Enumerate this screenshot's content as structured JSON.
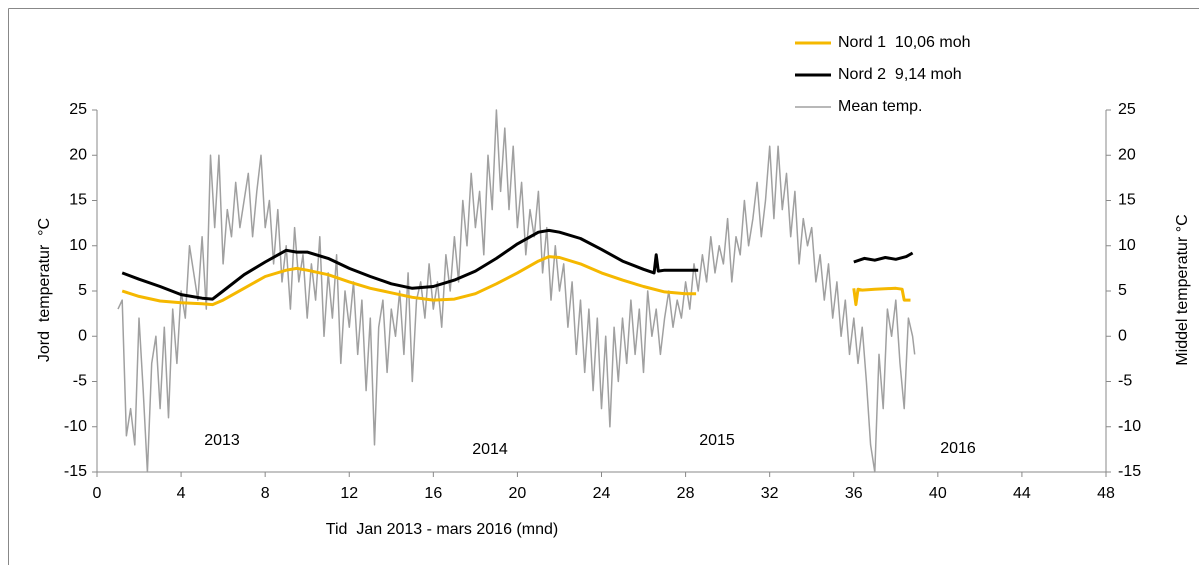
{
  "chart_data": {
    "type": "line",
    "x_label": "Tid  Jan 2013 - mars 2016 (mnd)",
    "y_label": "Jord  temperatur  °C",
    "y2_label": "Middel temperatur °C",
    "xlim": [
      0,
      48
    ],
    "xticks": [
      0,
      4,
      8,
      12,
      16,
      20,
      24,
      28,
      32,
      36,
      40,
      44,
      48
    ],
    "ylim": [
      -15,
      25
    ],
    "yticks": [
      -15,
      -10,
      -5,
      0,
      5,
      10,
      15,
      20,
      25
    ],
    "y2lim": [
      -15,
      25
    ],
    "y2ticks": [
      -15,
      -10,
      -5,
      0,
      5,
      10,
      15,
      20,
      25
    ],
    "annotations": [
      "2013",
      "2014",
      "2015",
      "2016"
    ],
    "series": [
      {
        "name": "Nord 1  10,06 moh",
        "color": "#f5b800",
        "x": [
          1.2,
          2,
          3,
          4,
          5,
          5.5,
          6,
          7,
          8,
          9,
          9.5,
          10,
          11,
          12,
          13,
          14,
          15,
          16,
          17,
          18,
          19,
          20,
          21,
          21.5,
          22,
          23,
          24,
          25,
          26,
          27,
          28,
          28.5,
          32,
          36,
          36.1,
          36.2,
          36.4,
          37,
          38,
          38.3,
          38.4,
          38.7
        ],
        "values": [
          5,
          4.4,
          3.9,
          3.7,
          3.6,
          3.5,
          4,
          5.3,
          6.6,
          7.3,
          7.5,
          7.3,
          6.8,
          6,
          5.3,
          4.8,
          4.3,
          4,
          4.1,
          4.7,
          5.8,
          7,
          8.3,
          8.8,
          8.7,
          8,
          7,
          6.2,
          5.5,
          4.9,
          4.7,
          4.7,
          null,
          5.3,
          3.5,
          5.2,
          5.1,
          5.2,
          5.3,
          5.2,
          4,
          4
        ]
      },
      {
        "name": "Nord 2  9,14 moh",
        "color": "#000000",
        "x": [
          1.2,
          2,
          3,
          4,
          5,
          5.5,
          6,
          7,
          8,
          9,
          9.5,
          10,
          11,
          12,
          13,
          14,
          15,
          16,
          17,
          18,
          19,
          20,
          21,
          21.5,
          22,
          23,
          24,
          25,
          26,
          26.5,
          26.6,
          26.7,
          27,
          28,
          28.6,
          32,
          36,
          36.5,
          37,
          37.5,
          38,
          38.5,
          38.8
        ],
        "values": [
          7,
          6.3,
          5.5,
          4.6,
          4.2,
          4.1,
          5,
          6.8,
          8.2,
          9.5,
          9.3,
          9.3,
          8.6,
          7.5,
          6.6,
          5.8,
          5.3,
          5.5,
          6.2,
          7.2,
          8.6,
          10.2,
          11.5,
          11.7,
          11.5,
          10.8,
          9.6,
          8.3,
          7.4,
          7,
          9,
          7.2,
          7.3,
          7.3,
          7.3,
          null,
          8.2,
          8.6,
          8.4,
          8.7,
          8.5,
          8.8,
          9.2
        ]
      },
      {
        "name": "Mean temp.",
        "color": "#a0a0a0",
        "axis": "y2",
        "x": [
          1,
          1.2,
          1.4,
          1.6,
          1.8,
          2,
          2.2,
          2.4,
          2.6,
          2.8,
          3,
          3.2,
          3.4,
          3.6,
          3.8,
          4,
          4.2,
          4.4,
          4.6,
          4.8,
          5,
          5.2,
          5.4,
          5.6,
          5.8,
          6,
          6.2,
          6.4,
          6.6,
          6.8,
          7,
          7.2,
          7.4,
          7.6,
          7.8,
          8,
          8.2,
          8.4,
          8.6,
          8.8,
          9,
          9.2,
          9.4,
          9.6,
          9.8,
          10,
          10.2,
          10.4,
          10.6,
          10.8,
          11,
          11.2,
          11.4,
          11.6,
          11.8,
          12,
          12.2,
          12.4,
          12.6,
          12.8,
          13,
          13.2,
          13.4,
          13.6,
          13.8,
          14,
          14.2,
          14.4,
          14.6,
          14.8,
          15,
          15.2,
          15.4,
          15.6,
          15.8,
          16,
          16.2,
          16.4,
          16.6,
          16.8,
          17,
          17.2,
          17.4,
          17.6,
          17.8,
          18,
          18.2,
          18.4,
          18.6,
          18.8,
          19,
          19.2,
          19.4,
          19.6,
          19.8,
          20,
          20.2,
          20.4,
          20.6,
          20.8,
          21,
          21.2,
          21.4,
          21.6,
          21.8,
          22,
          22.2,
          22.4,
          22.6,
          22.8,
          23,
          23.2,
          23.4,
          23.6,
          23.8,
          24,
          24.2,
          24.4,
          24.6,
          24.8,
          25,
          25.2,
          25.4,
          25.6,
          25.8,
          26,
          26.2,
          26.4,
          26.6,
          26.8,
          27,
          27.2,
          27.4,
          27.6,
          27.8,
          28,
          28.2,
          28.4,
          28.6,
          28.8,
          29,
          29.2,
          29.4,
          29.6,
          29.8,
          30,
          30.2,
          30.4,
          30.6,
          30.8,
          31,
          31.2,
          31.4,
          31.6,
          31.8,
          32,
          32.2,
          32.4,
          32.6,
          32.8,
          33,
          33.2,
          33.4,
          33.6,
          33.8,
          34,
          34.2,
          34.4,
          34.6,
          34.8,
          35,
          35.2,
          35.4,
          35.6,
          35.8,
          36,
          36.2,
          36.4,
          36.6,
          36.8,
          37,
          37.2,
          37.4,
          37.6,
          37.8,
          38,
          38.2,
          38.4,
          38.6,
          38.8,
          38.9
        ],
        "values": [
          3,
          4,
          -11,
          -8,
          -12,
          2,
          -6,
          -15,
          -3,
          0,
          -8,
          1,
          -9,
          3,
          -3,
          5,
          2,
          10,
          7,
          4,
          11,
          3,
          20,
          12,
          20,
          8,
          14,
          11,
          17,
          12,
          15,
          18,
          11,
          16,
          20,
          12,
          15,
          8,
          14,
          6,
          10,
          3,
          12,
          6,
          9,
          2,
          8,
          4,
          11,
          0,
          7,
          2,
          9,
          -3,
          5,
          1,
          6,
          -2,
          4,
          -6,
          2,
          -12,
          1,
          4,
          -4,
          3,
          0,
          5,
          -2,
          7,
          -5,
          4,
          6,
          2,
          8,
          3,
          6,
          1,
          9,
          5,
          11,
          6,
          15,
          10,
          18,
          12,
          16,
          9,
          20,
          14,
          25,
          16,
          23,
          14,
          21,
          12,
          17,
          9,
          14,
          11,
          16,
          7,
          12,
          4,
          10,
          5,
          8,
          1,
          6,
          -2,
          4,
          -4,
          3,
          -6,
          2,
          -8,
          0,
          -10,
          1,
          -5,
          2,
          -3,
          4,
          -2,
          3,
          -4,
          5,
          0,
          3,
          -2,
          2,
          5,
          1,
          4,
          2,
          6,
          3,
          8,
          5,
          9,
          6,
          11,
          7,
          10,
          8,
          13,
          6,
          11,
          9,
          15,
          10,
          13,
          17,
          11,
          15,
          21,
          13,
          21,
          14,
          18,
          11,
          16,
          8,
          13,
          10,
          12,
          6,
          9,
          4,
          8,
          2,
          6,
          0,
          4,
          -2,
          2,
          -3,
          1,
          -5,
          -12,
          -15,
          -2,
          -8,
          3,
          0,
          4,
          -3,
          -8,
          2,
          0,
          -2
        ]
      }
    ]
  }
}
